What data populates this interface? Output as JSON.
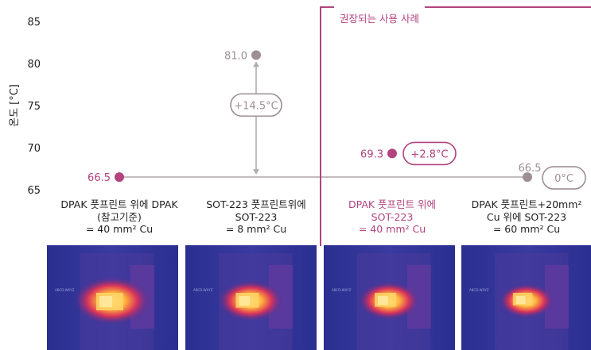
{
  "chart_data": {
    "type": "scatter",
    "title": "",
    "xlabel": "",
    "ylabel": "온도 [°C]",
    "ylim": [
      65,
      85
    ],
    "yticks": [
      "85",
      "80",
      "75",
      "70",
      "65"
    ],
    "categories": [
      {
        "line1": "DPAK 풋프린트 위에 DPAK",
        "line2": "(참고기준)",
        "line3": "= 40 mm² Cu"
      },
      {
        "line1": "SOT-223 풋프린트위에",
        "line2": "SOT-223",
        "line3": "= 8 mm² Cu"
      },
      {
        "line1": "DPAK 풋프린트 위에",
        "line2": "SOT-223",
        "line3": "= 40 mm² Cu"
      },
      {
        "line1": "DPAK 풋프린트+20mm²",
        "line2": "Cu 위에 SOT-223",
        "line3": "= 60 mm² Cu"
      }
    ],
    "values": [
      66.5,
      81.0,
      69.3,
      66.5
    ],
    "value_labels": [
      "66.5",
      "81.0",
      "69.3",
      "66.5"
    ],
    "deltas": [
      "",
      "+14.5°C",
      "+2.8°C",
      "0°C"
    ],
    "reference_value": 66.5,
    "highlight_label": "권장되는 사용 사례",
    "grid": false
  },
  "colors": {
    "accent": "#b2437f",
    "neutral": "#9d8f93",
    "line": "#b6acaf",
    "axis_text": "#222222"
  }
}
